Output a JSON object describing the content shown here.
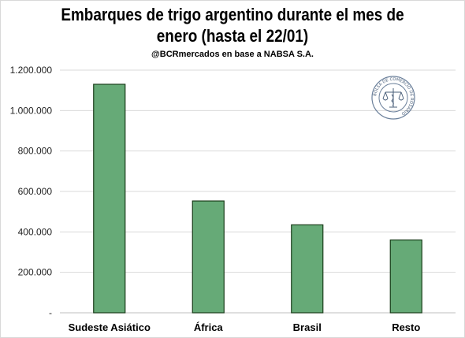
{
  "title_line1": "Embarques de trigo argentino durante el mes de",
  "title_line2": "enero (hasta el 22/01)",
  "subtitle": "@BCRmercados en base a NABSA S.A.",
  "logo": {
    "text": "BOLSA DE COMERCIO DE ROSARIO",
    "icon": "scales-seal-icon"
  },
  "colors": {
    "bar": "#66aa77",
    "bar_border": "#1a3d1a",
    "grid": "#d9d9d9",
    "axis": "#bfbfbf"
  },
  "chart_data": {
    "type": "bar",
    "title": "Embarques de trigo argentino durante el mes de enero (hasta el 22/01)",
    "subtitle": "@BCRmercados en base a NABSA S.A.",
    "categories": [
      "Sudeste Asiático",
      "África",
      "Brasil",
      "Resto"
    ],
    "values": [
      1130000,
      553000,
      435000,
      360000
    ],
    "ylim": [
      0,
      1200000
    ],
    "yticks": [
      0,
      200000,
      400000,
      600000,
      800000,
      1000000,
      1200000
    ],
    "ytick_labels": [
      "-",
      "200.000",
      "400.000",
      "600.000",
      "800.000",
      "1.000.000",
      "1.200.000"
    ],
    "grid": true,
    "legend": "none",
    "xlabel": "",
    "ylabel": ""
  }
}
